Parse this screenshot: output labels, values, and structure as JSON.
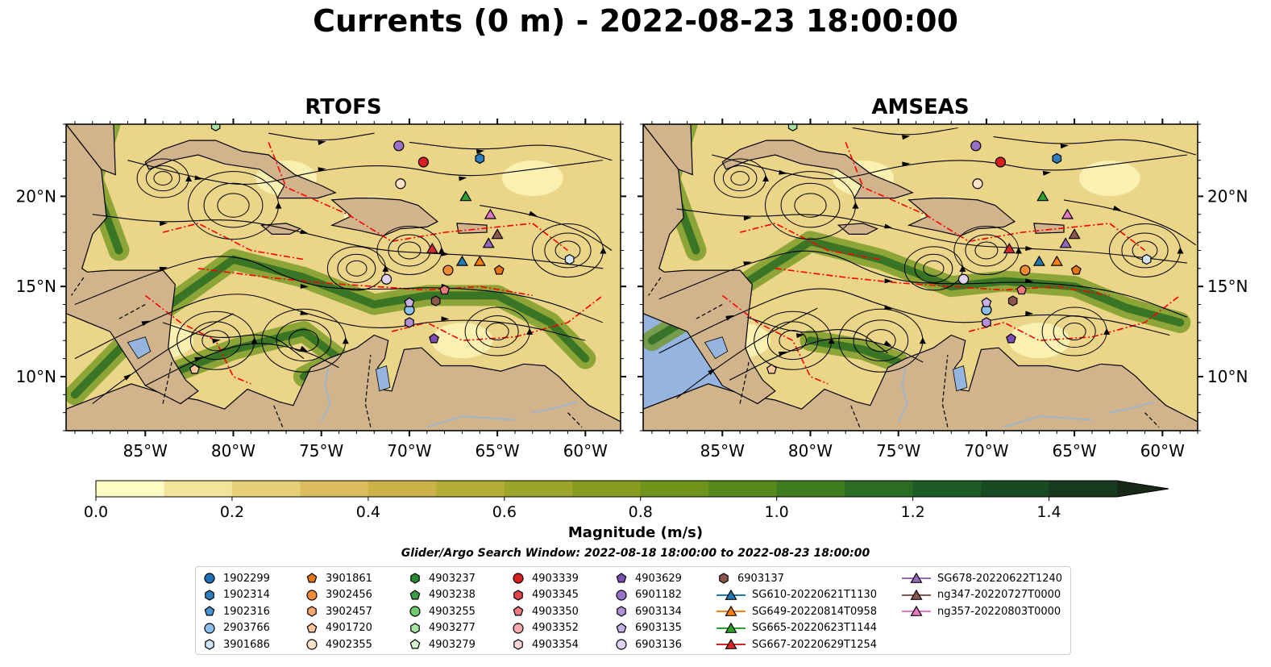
{
  "title": "Currents (0 m) - 2022-08-23 18:00:00",
  "chart_data": [
    {
      "type": "heatmap",
      "title": "RTOFS",
      "xlim": [
        -89.5,
        -58.0
      ],
      "ylim": [
        7.0,
        24.0
      ],
      "x_ticks": [
        "85°W",
        "80°W",
        "75°W",
        "70°W",
        "65°W",
        "60°W"
      ],
      "y_ticks": [
        "10°N",
        "15°N",
        "20°N"
      ],
      "colorbar_range": [
        0.0,
        1.5
      ]
    },
    {
      "type": "heatmap",
      "title": "AMSEAS",
      "xlim": [
        -89.5,
        -58.0
      ],
      "ylim": [
        7.0,
        24.0
      ],
      "x_ticks": [
        "85°W",
        "80°W",
        "75°W",
        "70°W",
        "65°W",
        "60°W"
      ],
      "y_ticks": [
        "10°N",
        "15°N",
        "20°N"
      ],
      "colorbar_range": [
        0.0,
        1.5
      ]
    }
  ],
  "colorbar": {
    "label": "Magnitude (m/s)",
    "ticks": [
      "0.0",
      "0.2",
      "0.4",
      "0.6",
      "0.8",
      "1.0",
      "1.2",
      "1.4"
    ],
    "colors": [
      "#fefbc4",
      "#f3e49a",
      "#e7cf79",
      "#dbbd5f",
      "#cdb24a",
      "#b6ad36",
      "#9ca52a",
      "#869d20",
      "#6e941c",
      "#56881c",
      "#3f7b1f",
      "#2b6c23",
      "#1d5c25",
      "#184b22",
      "#17391d",
      "#172a17"
    ]
  },
  "search_window": "Glider/Argo Search Window: 2022-08-18 18:00:00 to 2022-08-23 18:00:00",
  "legend": [
    {
      "label": "1902299",
      "marker": "circle",
      "color": "#1f6fb4"
    },
    {
      "label": "1902314",
      "marker": "hexagon",
      "color": "#2f7fc0"
    },
    {
      "label": "1902316",
      "marker": "pentagon",
      "color": "#4a94d0"
    },
    {
      "label": "2903766",
      "marker": "circle",
      "color": "#8ec1ea"
    },
    {
      "label": "3901686",
      "marker": "hexagon",
      "color": "#d2e6f7"
    },
    {
      "label": "3901861",
      "marker": "pentagon",
      "color": "#e8760f"
    },
    {
      "label": "3902456",
      "marker": "circle",
      "color": "#f58a36"
    },
    {
      "label": "3902457",
      "marker": "hexagon",
      "color": "#f8a86a"
    },
    {
      "label": "4901720",
      "marker": "pentagon",
      "color": "#fbc79a"
    },
    {
      "label": "4902355",
      "marker": "circle",
      "color": "#fde1c6"
    },
    {
      "label": "4903237",
      "marker": "hexagon",
      "color": "#258a2f"
    },
    {
      "label": "4903238",
      "marker": "pentagon",
      "color": "#3aa043"
    },
    {
      "label": "4903255",
      "marker": "circle",
      "color": "#6ecb6b"
    },
    {
      "label": "4903277",
      "marker": "hexagon",
      "color": "#a6e3a0"
    },
    {
      "label": "4903279",
      "marker": "pentagon",
      "color": "#d7f5cf"
    },
    {
      "label": "4903339",
      "marker": "circle",
      "color": "#d62020"
    },
    {
      "label": "4903345",
      "marker": "hexagon",
      "color": "#e0464a"
    },
    {
      "label": "4903350",
      "marker": "pentagon",
      "color": "#ec7a80"
    },
    {
      "label": "4903352",
      "marker": "circle",
      "color": "#f5a9ab"
    },
    {
      "label": "4903354",
      "marker": "hexagon",
      "color": "#fcd6d6"
    },
    {
      "label": "4903629",
      "marker": "pentagon",
      "color": "#7d4fb5"
    },
    {
      "label": "6901182",
      "marker": "circle",
      "color": "#9a6fc8"
    },
    {
      "label": "6903134",
      "marker": "hexagon",
      "color": "#b28fd6"
    },
    {
      "label": "6903135",
      "marker": "pentagon",
      "color": "#c9b0e4"
    },
    {
      "label": "6903136",
      "marker": "circle",
      "color": "#e2d2f1"
    },
    {
      "label": "6903137",
      "marker": "hexagon",
      "color": "#8c564b"
    },
    {
      "label": "SG610-20220621T1130",
      "marker": "triangle-line",
      "color": "#1f77b4"
    },
    {
      "label": "SG649-20220814T0958",
      "marker": "triangle-line",
      "color": "#ff7f0e"
    },
    {
      "label": "SG665-20220623T1144",
      "marker": "triangle-line",
      "color": "#2ca02c"
    },
    {
      "label": "SG667-20220629T1254",
      "marker": "triangle-line",
      "color": "#d62728"
    },
    {
      "label": "SG678-20220622T1240",
      "marker": "triangle-line",
      "color": "#9467bd"
    },
    {
      "label": "ng347-20220727T0000",
      "marker": "triangle-line",
      "color": "#8c564b"
    },
    {
      "label": "ng357-20220803T0000",
      "marker": "triangle-line",
      "color": "#e377c2"
    }
  ],
  "map_colors": {
    "land": "#d2b48c",
    "water": "#95b5e0",
    "eez": "#ff0000",
    "river": "#9bb5c9"
  },
  "observations": [
    {
      "label": "1902299",
      "lon": -70.0,
      "lat": 13.7
    },
    {
      "label": "1902314",
      "lon": -66.0,
      "lat": 22.1
    },
    {
      "label": "1902316",
      "lon": -67.8,
      "lat": 15.9
    },
    {
      "label": "2903766",
      "lon": -70.0,
      "lat": 13.7
    },
    {
      "label": "3901686",
      "lon": -60.9,
      "lat": 16.5
    },
    {
      "label": "3901861",
      "lon": -64.9,
      "lat": 15.9
    },
    {
      "label": "3902456",
      "lon": -67.8,
      "lat": 15.9
    },
    {
      "label": "4901720",
      "lon": -82.2,
      "lat": 10.4
    },
    {
      "label": "4902355",
      "lon": -70.5,
      "lat": 20.7
    },
    {
      "label": "4903277",
      "lon": -81.0,
      "lat": 23.9
    },
    {
      "label": "4903339",
      "lon": -69.2,
      "lat": 21.9
    },
    {
      "label": "4903350",
      "lon": -68.0,
      "lat": 14.8
    },
    {
      "label": "4903629",
      "lon": -68.6,
      "lat": 12.1
    },
    {
      "label": "6901182",
      "lon": -70.6,
      "lat": 22.8
    },
    {
      "label": "6903134",
      "lon": -70.0,
      "lat": 13.0
    },
    {
      "label": "6903135",
      "lon": -70.0,
      "lat": 14.1
    },
    {
      "label": "6903136",
      "lon": -71.3,
      "lat": 15.4
    },
    {
      "label": "6903137",
      "lon": -68.5,
      "lat": 14.2
    },
    {
      "label": "SG610-20220621T1130",
      "lon": -67.0,
      "lat": 16.4
    },
    {
      "label": "SG649-20220814T0958",
      "lon": -66.0,
      "lat": 16.4
    },
    {
      "label": "SG665-20220623T1144",
      "lon": -66.8,
      "lat": 20.0
    },
    {
      "label": "SG667-20220629T1254",
      "lon": -68.7,
      "lat": 17.1
    },
    {
      "label": "SG678-20220622T1240",
      "lon": -65.5,
      "lat": 17.4
    },
    {
      "label": "ng347-20220727T0000",
      "lon": -65.0,
      "lat": 17.9
    },
    {
      "label": "ng357-20220803T0000",
      "lon": -65.4,
      "lat": 19.0
    }
  ]
}
